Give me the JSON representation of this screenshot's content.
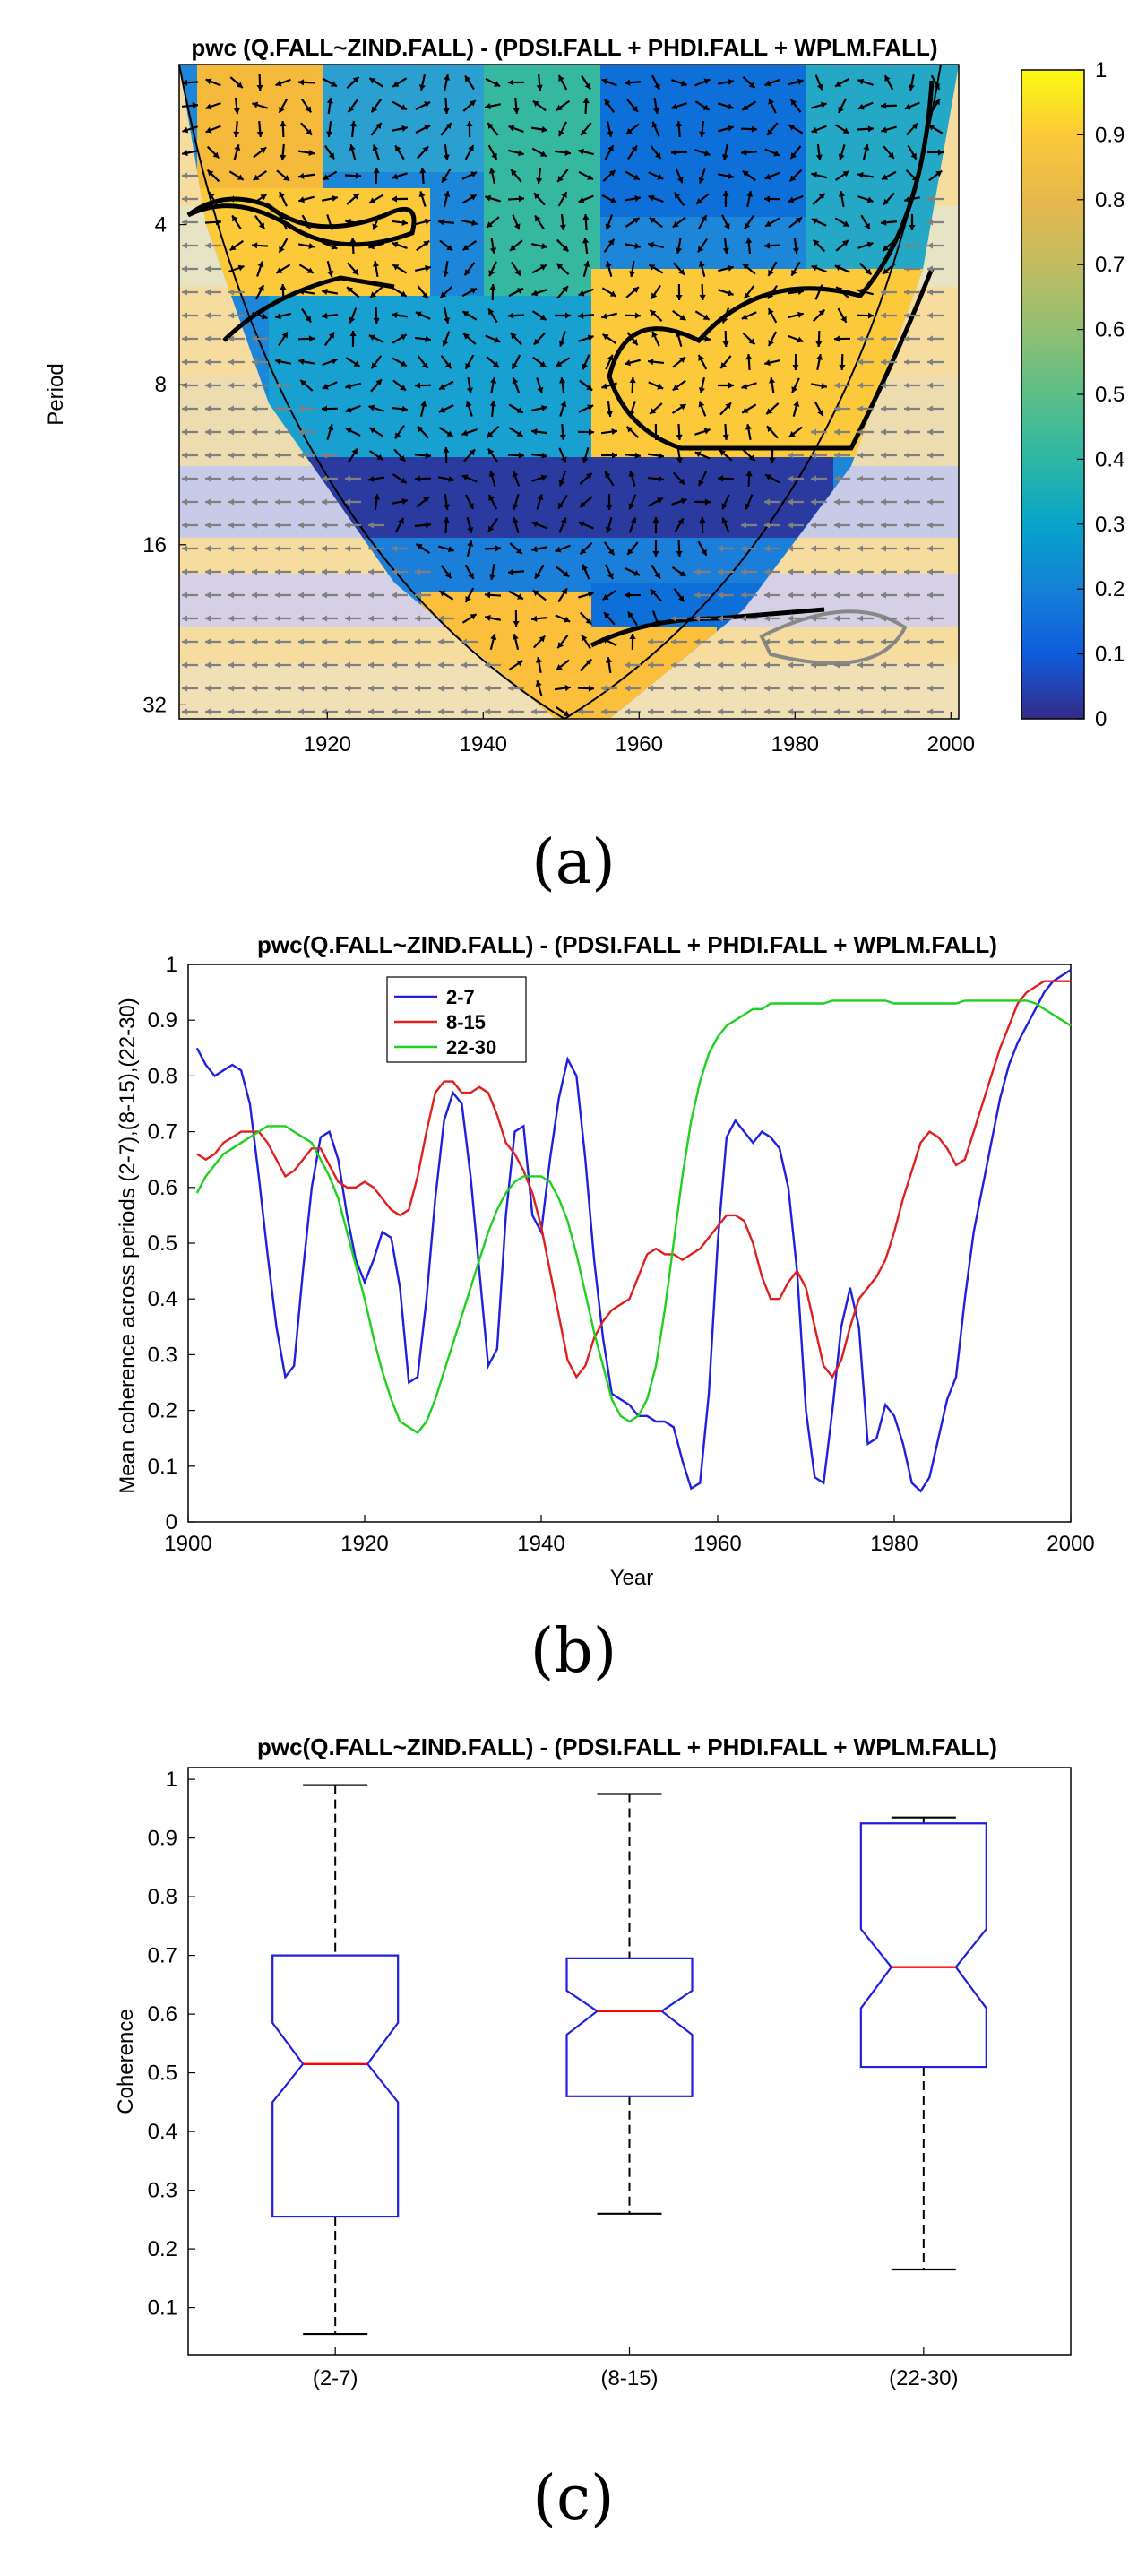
{
  "panels": {
    "a": "(a)",
    "b": "(b)",
    "c": "(c)"
  },
  "colors": {
    "blue": "#1f1fe0",
    "red": "#e01f1f",
    "green": "#1fd01f",
    "median": "#ff0000",
    "box": "#1f1fe0"
  },
  "chart_data": [
    {
      "id": "a",
      "type": "heatmap",
      "title": "pwc (Q.FALL~ZIND.FALL) - (PDSI.FALL + PHDI.FALL + WPLM.FALL)",
      "ylabel": "Period",
      "xlabel": "",
      "xticks": [
        1920,
        1940,
        1960,
        1980,
        2000
      ],
      "xlim": [
        1901,
        2001
      ],
      "yticks": [
        4,
        8,
        16,
        32
      ],
      "ylim": [
        2,
        34
      ],
      "yscale": "log2",
      "colorbar": {
        "ticks": [
          0,
          0.1,
          0.2,
          0.3,
          0.4,
          0.5,
          0.6,
          0.7,
          0.8,
          0.9,
          1
        ],
        "range": [
          0,
          1
        ],
        "colormap": "parula"
      }
    },
    {
      "id": "b",
      "type": "line",
      "title": "pwc(Q.FALL~ZIND.FALL) - (PDSI.FALL + PHDI.FALL + WPLM.FALL)",
      "xlabel": "Year",
      "ylabel": "Mean coherence across periods (2-7),(8-15),(22-30)",
      "xlim": [
        1900,
        2000
      ],
      "ylim": [
        0,
        1
      ],
      "xticks": [
        1900,
        1920,
        1940,
        1960,
        1980,
        2000
      ],
      "yticks": [
        0,
        0.1,
        0.2,
        0.3,
        0.4,
        0.5,
        0.6,
        0.7,
        0.8,
        0.9,
        1
      ],
      "legend_position": "top-left",
      "series": [
        {
          "name": "2-7",
          "color": "#1f1fe0",
          "x": [
            1901,
            1902,
            1903,
            1904,
            1905,
            1906,
            1907,
            1908,
            1909,
            1910,
            1911,
            1912,
            1913,
            1914,
            1915,
            1916,
            1917,
            1918,
            1919,
            1920,
            1921,
            1922,
            1923,
            1924,
            1925,
            1926,
            1927,
            1928,
            1929,
            1930,
            1931,
            1932,
            1933,
            1934,
            1935,
            1936,
            1937,
            1938,
            1939,
            1940,
            1941,
            1942,
            1943,
            1944,
            1945,
            1946,
            1947,
            1948,
            1949,
            1950,
            1951,
            1952,
            1953,
            1954,
            1955,
            1956,
            1957,
            1958,
            1959,
            1960,
            1961,
            1962,
            1963,
            1964,
            1965,
            1966,
            1967,
            1968,
            1969,
            1970,
            1971,
            1972,
            1973,
            1974,
            1975,
            1976,
            1977,
            1978,
            1979,
            1980,
            1981,
            1982,
            1983,
            1984,
            1985,
            1986,
            1987,
            1988,
            1989,
            1990,
            1991,
            1992,
            1993,
            1994,
            1995,
            1996,
            1997,
            1998,
            1999,
            2000
          ],
          "y": [
            0.85,
            0.82,
            0.8,
            0.81,
            0.82,
            0.81,
            0.75,
            0.62,
            0.48,
            0.35,
            0.26,
            0.28,
            0.45,
            0.6,
            0.69,
            0.7,
            0.65,
            0.55,
            0.47,
            0.43,
            0.47,
            0.52,
            0.51,
            0.42,
            0.25,
            0.26,
            0.4,
            0.58,
            0.72,
            0.77,
            0.75,
            0.62,
            0.45,
            0.28,
            0.31,
            0.55,
            0.7,
            0.71,
            0.55,
            0.52,
            0.65,
            0.76,
            0.83,
            0.8,
            0.65,
            0.47,
            0.33,
            0.23,
            0.22,
            0.21,
            0.19,
            0.19,
            0.18,
            0.18,
            0.17,
            0.11,
            0.06,
            0.07,
            0.23,
            0.5,
            0.69,
            0.72,
            0.7,
            0.68,
            0.7,
            0.69,
            0.67,
            0.6,
            0.45,
            0.2,
            0.08,
            0.07,
            0.2,
            0.35,
            0.42,
            0.35,
            0.14,
            0.15,
            0.21,
            0.19,
            0.14,
            0.07,
            0.055,
            0.08,
            0.15,
            0.22,
            0.26,
            0.4,
            0.52,
            0.6,
            0.68,
            0.76,
            0.82,
            0.86,
            0.89,
            0.92,
            0.95,
            0.97,
            0.98,
            0.99
          ]
        },
        {
          "name": "8-15",
          "color": "#e01f1f",
          "x": [
            1901,
            1902,
            1903,
            1904,
            1905,
            1906,
            1907,
            1908,
            1909,
            1910,
            1911,
            1912,
            1913,
            1914,
            1915,
            1916,
            1917,
            1918,
            1919,
            1920,
            1921,
            1922,
            1923,
            1924,
            1925,
            1926,
            1927,
            1928,
            1929,
            1930,
            1931,
            1932,
            1933,
            1934,
            1935,
            1936,
            1937,
            1938,
            1939,
            1940,
            1941,
            1942,
            1943,
            1944,
            1945,
            1946,
            1947,
            1948,
            1949,
            1950,
            1951,
            1952,
            1953,
            1954,
            1955,
            1956,
            1957,
            1958,
            1959,
            1960,
            1961,
            1962,
            1963,
            1964,
            1965,
            1966,
            1967,
            1968,
            1969,
            1970,
            1971,
            1972,
            1973,
            1974,
            1975,
            1976,
            1977,
            1978,
            1979,
            1980,
            1981,
            1982,
            1983,
            1984,
            1985,
            1986,
            1987,
            1988,
            1989,
            1990,
            1991,
            1992,
            1993,
            1994,
            1995,
            1996,
            1997,
            1998,
            1999,
            2000
          ],
          "y": [
            0.66,
            0.65,
            0.66,
            0.68,
            0.69,
            0.7,
            0.7,
            0.7,
            0.68,
            0.65,
            0.62,
            0.63,
            0.65,
            0.67,
            0.67,
            0.64,
            0.61,
            0.6,
            0.6,
            0.61,
            0.6,
            0.58,
            0.56,
            0.55,
            0.56,
            0.62,
            0.7,
            0.77,
            0.79,
            0.79,
            0.77,
            0.77,
            0.78,
            0.77,
            0.73,
            0.68,
            0.66,
            0.63,
            0.59,
            0.53,
            0.45,
            0.37,
            0.29,
            0.26,
            0.28,
            0.33,
            0.36,
            0.38,
            0.39,
            0.4,
            0.44,
            0.48,
            0.49,
            0.48,
            0.48,
            0.47,
            0.48,
            0.49,
            0.51,
            0.53,
            0.55,
            0.55,
            0.54,
            0.5,
            0.44,
            0.4,
            0.4,
            0.43,
            0.45,
            0.42,
            0.35,
            0.28,
            0.26,
            0.29,
            0.35,
            0.4,
            0.42,
            0.44,
            0.47,
            0.52,
            0.58,
            0.63,
            0.68,
            0.7,
            0.69,
            0.67,
            0.64,
            0.65,
            0.7,
            0.75,
            0.8,
            0.85,
            0.89,
            0.93,
            0.95,
            0.96,
            0.97,
            0.97,
            0.97,
            0.97
          ]
        },
        {
          "name": "22-30",
          "color": "#1fd01f",
          "x": [
            1901,
            1902,
            1903,
            1904,
            1905,
            1906,
            1907,
            1908,
            1909,
            1910,
            1911,
            1912,
            1913,
            1914,
            1915,
            1916,
            1917,
            1918,
            1919,
            1920,
            1921,
            1922,
            1923,
            1924,
            1925,
            1926,
            1927,
            1928,
            1929,
            1930,
            1931,
            1932,
            1933,
            1934,
            1935,
            1936,
            1937,
            1938,
            1939,
            1940,
            1941,
            1942,
            1943,
            1944,
            1945,
            1946,
            1947,
            1948,
            1949,
            1950,
            1951,
            1952,
            1953,
            1954,
            1955,
            1956,
            1957,
            1958,
            1959,
            1960,
            1961,
            1962,
            1963,
            1964,
            1965,
            1966,
            1967,
            1968,
            1969,
            1970,
            1971,
            1972,
            1973,
            1974,
            1975,
            1976,
            1977,
            1978,
            1979,
            1980,
            1981,
            1982,
            1983,
            1984,
            1985,
            1986,
            1987,
            1988,
            1989,
            1990,
            1991,
            1992,
            1993,
            1994,
            1995,
            1996,
            1997,
            1998,
            1999,
            2000
          ],
          "y": [
            0.59,
            0.62,
            0.64,
            0.66,
            0.67,
            0.68,
            0.69,
            0.7,
            0.71,
            0.71,
            0.71,
            0.7,
            0.69,
            0.68,
            0.65,
            0.62,
            0.58,
            0.52,
            0.46,
            0.4,
            0.33,
            0.27,
            0.22,
            0.18,
            0.17,
            0.16,
            0.18,
            0.22,
            0.27,
            0.32,
            0.37,
            0.42,
            0.47,
            0.52,
            0.56,
            0.59,
            0.61,
            0.62,
            0.62,
            0.62,
            0.61,
            0.58,
            0.54,
            0.48,
            0.41,
            0.34,
            0.28,
            0.22,
            0.19,
            0.18,
            0.19,
            0.22,
            0.28,
            0.38,
            0.5,
            0.62,
            0.72,
            0.79,
            0.84,
            0.87,
            0.89,
            0.9,
            0.91,
            0.92,
            0.92,
            0.93,
            0.93,
            0.93,
            0.93,
            0.93,
            0.93,
            0.93,
            0.935,
            0.935,
            0.935,
            0.935,
            0.935,
            0.935,
            0.935,
            0.93,
            0.93,
            0.93,
            0.93,
            0.93,
            0.93,
            0.93,
            0.93,
            0.935,
            0.935,
            0.935,
            0.935,
            0.935,
            0.935,
            0.935,
            0.935,
            0.93,
            0.92,
            0.91,
            0.9,
            0.89
          ]
        }
      ]
    },
    {
      "id": "c",
      "type": "box",
      "title": "pwc(Q.FALL~ZIND.FALL) - (PDSI.FALL + PHDI.FALL + WPLM.FALL)",
      "xlabel": "",
      "ylabel": "Coherence",
      "ylim": [
        0.02,
        1.02
      ],
      "yticks": [
        0.1,
        0.2,
        0.3,
        0.4,
        0.5,
        0.6,
        0.7,
        0.8,
        0.9,
        1
      ],
      "categories": [
        "(2-7)",
        "(8-15)",
        "(22-30)"
      ],
      "boxes": [
        {
          "category": "(2-7)",
          "min": 0.055,
          "q1": 0.255,
          "median": 0.515,
          "q3": 0.7,
          "max": 0.99,
          "notch_low": 0.45,
          "notch_high": 0.585
        },
        {
          "category": "(8-15)",
          "min": 0.26,
          "q1": 0.46,
          "median": 0.605,
          "q3": 0.695,
          "max": 0.975,
          "notch_low": 0.565,
          "notch_high": 0.64
        },
        {
          "category": "(22-30)",
          "min": 0.165,
          "q1": 0.51,
          "median": 0.68,
          "q3": 0.925,
          "max": 0.935,
          "notch_low": 0.61,
          "notch_high": 0.745
        }
      ]
    }
  ]
}
